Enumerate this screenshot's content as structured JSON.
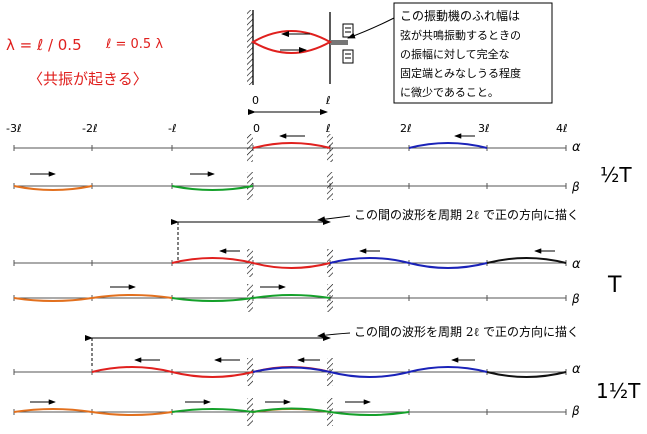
{
  "red_notes": {
    "formula_lambda": "λ = ℓ / 0.5",
    "formula_l": "ℓ = 0.5 λ",
    "resonance": "〈共振が起きる〉"
  },
  "callout": {
    "line1": "この振動機のふれ幅は",
    "line2": "弦が共鳴振動するときの",
    "line3": "の振幅に対して完全な",
    "line4": "固定端とみなしうる程度",
    "line5": "に微少であること。"
  },
  "wall_labels": {
    "left": "0",
    "right": "ℓ"
  },
  "axis_ticks": [
    "-3ℓ",
    "-2ℓ",
    "-ℓ",
    "0",
    "ℓ",
    "2ℓ",
    "3ℓ",
    "4ℓ"
  ],
  "row_labels": {
    "alpha": "α",
    "beta": "β"
  },
  "time_labels": {
    "half": "½T",
    "full": "T",
    "three_half": "1½T"
  },
  "span_notes": {
    "first": "この間の波形を周期 2ℓ で正の方向に描く",
    "second": "この間の波形を周期 2ℓ で正の方向に描く"
  },
  "colors": {
    "red": "#e0201e",
    "blue": "#1a22b8",
    "green": "#14a02a",
    "orange": "#e2701e",
    "black": "#111111",
    "axis": "#555555"
  }
}
